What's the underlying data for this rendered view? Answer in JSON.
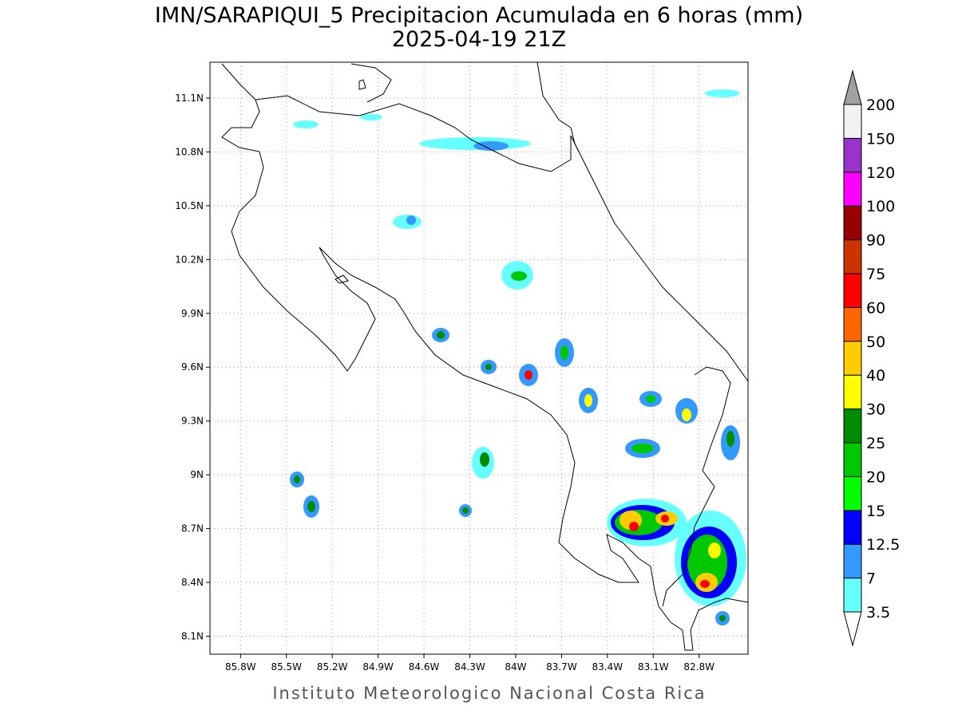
{
  "header": {
    "title": "IMN/SARAPIQUI_5 Precipitacion Acumulada en 6 horas (mm)",
    "subtitle": "2025-04-19 21Z"
  },
  "map": {
    "lon_range": [
      -86.0,
      -82.48
    ],
    "lat_range": [
      8.0,
      11.3
    ],
    "grid": true,
    "lon_ticks": [
      {
        "value": -85.8,
        "label": "85.8W"
      },
      {
        "value": -85.5,
        "label": "85.5W"
      },
      {
        "value": -85.2,
        "label": "85.2W"
      },
      {
        "value": -84.9,
        "label": "84.9W"
      },
      {
        "value": -84.6,
        "label": "84.6W"
      },
      {
        "value": -84.3,
        "label": "84.3W"
      },
      {
        "value": -84.0,
        "label": "84W"
      },
      {
        "value": -83.7,
        "label": "83.7W"
      },
      {
        "value": -83.4,
        "label": "83.4W"
      },
      {
        "value": -83.1,
        "label": "83.1W"
      },
      {
        "value": -82.8,
        "label": "82.8W"
      }
    ],
    "lat_ticks": [
      {
        "value": 8.1,
        "label": "8.1N"
      },
      {
        "value": 8.4,
        "label": "8.4N"
      },
      {
        "value": 8.7,
        "label": "8.7N"
      },
      {
        "value": 9.0,
        "label": "9N"
      },
      {
        "value": 9.3,
        "label": "9.3N"
      },
      {
        "value": 9.6,
        "label": "9.6N"
      },
      {
        "value": 9.9,
        "label": "9.9N"
      },
      {
        "value": 10.2,
        "label": "10.2N"
      },
      {
        "value": 10.5,
        "label": "10.5N"
      },
      {
        "value": 10.8,
        "label": "10.8N"
      },
      {
        "value": 11.1,
        "label": "11.1N"
      }
    ]
  },
  "legend": {
    "levels": [
      3.5,
      7,
      12.5,
      15,
      20,
      25,
      30,
      40,
      50,
      60,
      75,
      90,
      100,
      120,
      150,
      200
    ],
    "colors": [
      "#66ffff",
      "#3399ff",
      "#0000ff",
      "#00ff00",
      "#00c800",
      "#008c00",
      "#ffff00",
      "#ffcc00",
      "#ff6600",
      "#ff0000",
      "#cc3300",
      "#990000",
      "#ff00ff",
      "#9933cc",
      "#f2f2f2"
    ],
    "under_color": "#ffffff",
    "over_color": "#a0a0a0"
  },
  "footer": {
    "text": "Instituto Meteorologico Nacional Costa Rica"
  }
}
